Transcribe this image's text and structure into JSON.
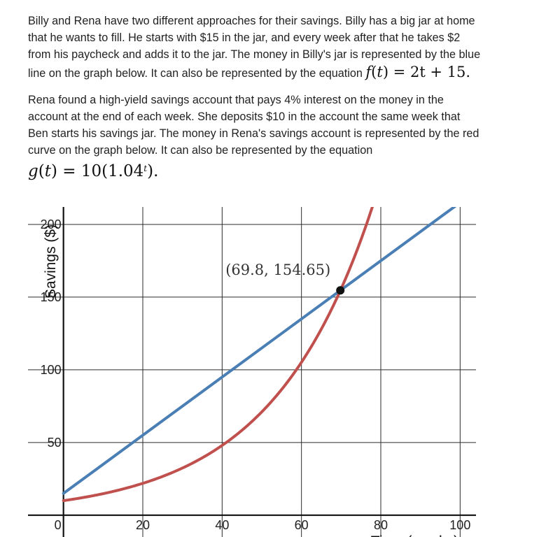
{
  "problem": {
    "para1_text": "Billy and Rena have two different approaches for their savings. Billy has a big jar at home that he wants to fill. He starts with $15 in the jar, and every week after that he takes $2 from his paycheck and adds it to the jar. The money in Billy's jar is represented by the blue line on the graph below. It can also be represented by the equation",
    "eq1": {
      "fn": "f",
      "arg": "t",
      "rhs": "2t + 15",
      "trail": "."
    },
    "para2_text": "Rena found a high-yield savings account that pays 4% interest on the money in the account at the end of each week. She deposits $10 in the account the same week that Ben starts his savings jar. The money in Rena's savings account is represented by the red curve on the graph below. It can also be represented by the equation",
    "eq2": {
      "fn": "g",
      "arg": "t",
      "rhs_coef": "10(1.04",
      "rhs_exp": "t",
      "rhs_close": ")",
      "trail": "."
    }
  },
  "chart_data": {
    "type": "line",
    "xlabel": "Time (weeks)",
    "ylabel": "Savings ($)",
    "xlim": [
      -16,
      104
    ],
    "ylim": [
      -15,
      212
    ],
    "x_ticks": [
      0,
      20,
      40,
      60,
      80,
      100
    ],
    "x_tick_labels": [
      "0",
      "20",
      "40",
      "60",
      "80",
      "100"
    ],
    "y_ticks": [
      50,
      100,
      150,
      200
    ],
    "y_tick_labels": [
      "50",
      "100",
      "150",
      "200"
    ],
    "grid": true,
    "series": [
      {
        "equation": "f(t) = 2t + 15",
        "color": "#4a7fb5",
        "points": [
          [
            0,
            15
          ],
          [
            20,
            55
          ],
          [
            40,
            95
          ],
          [
            60,
            135
          ],
          [
            69.8,
            154.6
          ],
          [
            80,
            175
          ],
          [
            100,
            215
          ]
        ]
      },
      {
        "equation": "g(t) = 10(1.04^t)",
        "color": "#c0504d",
        "points": [
          [
            0,
            10
          ],
          [
            10,
            14.8
          ],
          [
            20,
            21.9
          ],
          [
            30,
            32.4
          ],
          [
            40,
            48.0
          ],
          [
            50,
            71.1
          ],
          [
            60,
            105.2
          ],
          [
            69.8,
            154.6
          ],
          [
            75,
            189.5
          ],
          [
            77.5,
            219
          ]
        ]
      }
    ],
    "annotations": [
      {
        "text": "(69.8, 154.65)",
        "x": 69.8,
        "y": 154.65
      }
    ],
    "intersection": {
      "x": 69.8,
      "y": 154.65
    },
    "colors": {
      "grid": "#2b2b2b",
      "axis": "#111111",
      "blue_line": "#4a7fb5",
      "red_curve": "#c0504d",
      "point": "#111111"
    }
  }
}
